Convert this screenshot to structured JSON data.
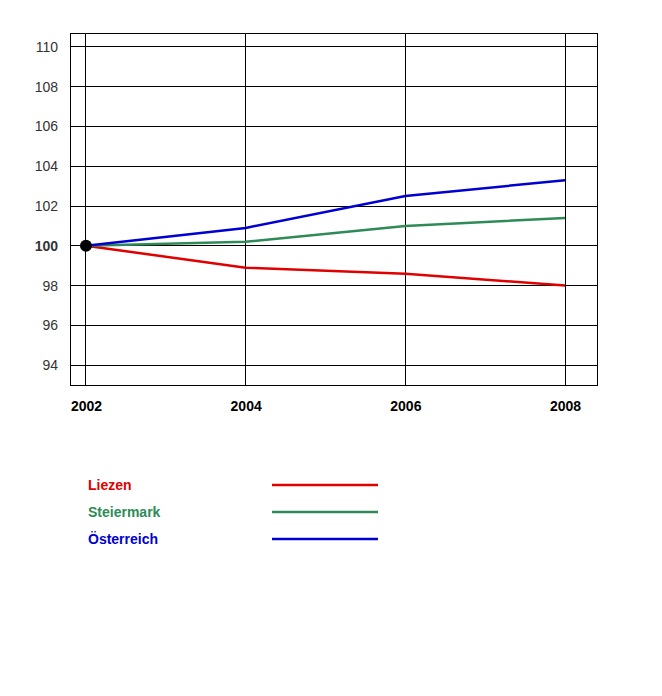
{
  "chart_data": {
    "type": "line",
    "x": [
      2002,
      2004,
      2006,
      2008
    ],
    "series": [
      {
        "name": "Liezen",
        "color": "#e00000",
        "values": [
          100,
          98.9,
          98.6,
          98.0
        ]
      },
      {
        "name": "Steiermark",
        "color": "#2e8b57",
        "values": [
          100,
          100.2,
          101.0,
          101.4
        ]
      },
      {
        "name": "Österreich",
        "color": "#0000d0",
        "values": [
          100,
          100.9,
          102.5,
          103.3
        ]
      }
    ],
    "xlim": [
      2001.8,
      2008.4
    ],
    "xticks": [
      2002,
      2004,
      2006,
      2008
    ],
    "ylim": [
      93,
      110.7
    ],
    "yticks": [
      94,
      96,
      98,
      100,
      102,
      104,
      106,
      108,
      110
    ],
    "grid": true,
    "legend": "bottom",
    "marker": "circle"
  }
}
